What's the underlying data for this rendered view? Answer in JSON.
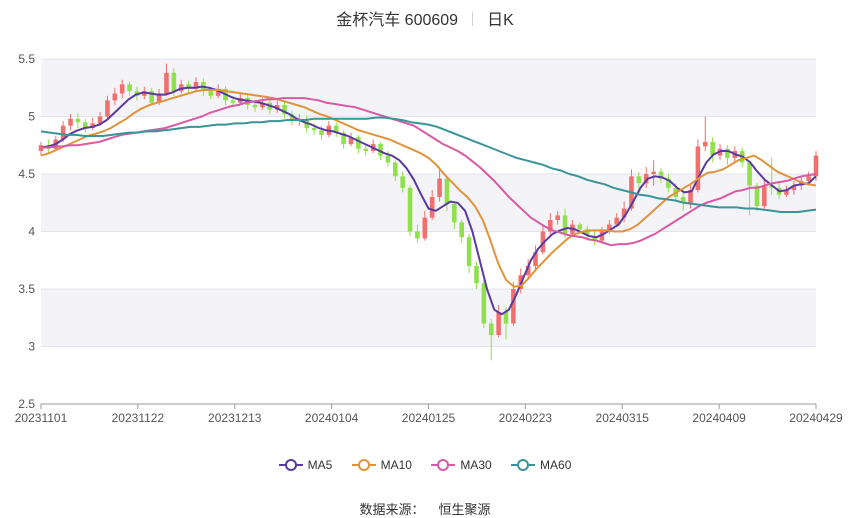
{
  "header": {
    "title": "金杯汽车 600609",
    "period": "日K"
  },
  "source": {
    "label": "数据来源：",
    "name": "恒生聚源"
  },
  "colors": {
    "up": "#f07070",
    "down": "#8fe04a",
    "MA5": "#5a3a9e",
    "MA10": "#e0943a",
    "MA30": "#d85aa4",
    "MA60": "#3a9498",
    "band": "#f3f3f8",
    "grid": "#e3e3ec"
  },
  "chart_data": {
    "type": "candlestick",
    "title": "金杯汽车 600609",
    "ylim": [
      2.5,
      5.5
    ],
    "yticks": [
      "2.5",
      "3",
      "3.5",
      "4",
      "4.5",
      "5",
      "5.5"
    ],
    "xticks": [
      "20231101",
      "20231122",
      "20231213",
      "20240104",
      "20240125",
      "20240223",
      "20240315",
      "20240409",
      "20240429"
    ],
    "grid": true,
    "legend_position": "bottom",
    "series": [
      {
        "name": "MA5",
        "values": [
          4.73,
          4.74,
          4.76,
          4.8,
          4.85,
          4.88,
          4.9,
          4.91,
          4.93,
          4.97,
          5.03,
          5.09,
          5.15,
          5.19,
          5.21,
          5.2,
          5.19,
          5.19,
          5.21,
          5.24,
          5.25,
          5.25,
          5.26,
          5.25,
          5.23,
          5.2,
          5.17,
          5.15,
          5.14,
          5.13,
          5.12,
          5.1,
          5.08,
          5.05,
          5.02,
          4.98,
          4.95,
          4.93,
          4.9,
          4.88,
          4.87,
          4.85,
          4.83,
          4.8,
          4.77,
          4.74,
          4.71,
          4.68,
          4.66,
          4.62,
          4.55,
          4.45,
          4.32,
          4.2,
          4.18,
          4.22,
          4.26,
          4.25,
          4.18,
          4.0,
          3.75,
          3.5,
          3.32,
          3.28,
          3.32,
          3.45,
          3.6,
          3.75,
          3.85,
          3.92,
          3.98,
          4.01,
          4.03,
          4.02,
          3.99,
          3.96,
          3.95,
          3.98,
          4.02,
          4.06,
          4.15,
          4.26,
          4.38,
          4.46,
          4.48,
          4.47,
          4.44,
          4.38,
          4.34,
          4.35,
          4.48,
          4.6,
          4.67,
          4.7,
          4.7,
          4.67,
          4.65,
          4.6,
          4.52,
          4.45,
          4.4,
          4.35,
          4.36,
          4.4,
          4.41,
          4.42,
          4.48
        ]
      },
      {
        "name": "MA10",
        "values": [
          4.66,
          4.68,
          4.71,
          4.74,
          4.77,
          4.8,
          4.83,
          4.85,
          4.87,
          4.9,
          4.94,
          4.98,
          5.03,
          5.07,
          5.1,
          5.12,
          5.14,
          5.16,
          5.18,
          5.2,
          5.22,
          5.23,
          5.23,
          5.23,
          5.22,
          5.21,
          5.2,
          5.19,
          5.18,
          5.17,
          5.16,
          5.14,
          5.12,
          5.1,
          5.08,
          5.05,
          5.02,
          5.0,
          4.97,
          4.94,
          4.91,
          4.88,
          4.86,
          4.84,
          4.82,
          4.8,
          4.77,
          4.74,
          4.71,
          4.68,
          4.64,
          4.58,
          4.5,
          4.43,
          4.36,
          4.3,
          4.22,
          4.1,
          3.92,
          3.72,
          3.58,
          3.52,
          3.53,
          3.6,
          3.68,
          3.75,
          3.82,
          3.88,
          3.94,
          3.98,
          4.0,
          4.01,
          4.01,
          4.01,
          4.0,
          4.0,
          4.02,
          4.06,
          4.12,
          4.18,
          4.24,
          4.3,
          4.34,
          4.38,
          4.42,
          4.47,
          4.51,
          4.52,
          4.54,
          4.58,
          4.62,
          4.64,
          4.66,
          4.62,
          4.57,
          4.52,
          4.49,
          4.46,
          4.43,
          4.41,
          4.4
        ]
      },
      {
        "name": "MA30",
        "values": [
          4.73,
          4.73,
          4.74,
          4.74,
          4.75,
          4.75,
          4.76,
          4.77,
          4.78,
          4.8,
          4.82,
          4.84,
          4.85,
          4.86,
          4.87,
          4.88,
          4.89,
          4.9,
          4.92,
          4.94,
          4.96,
          4.98,
          5.0,
          5.03,
          5.05,
          5.07,
          5.09,
          5.1,
          5.12,
          5.13,
          5.14,
          5.15,
          5.15,
          5.16,
          5.16,
          5.16,
          5.16,
          5.15,
          5.14,
          5.12,
          5.11,
          5.1,
          5.09,
          5.08,
          5.06,
          5.04,
          5.02,
          5.0,
          4.98,
          4.96,
          4.94,
          4.92,
          4.88,
          4.84,
          4.8,
          4.76,
          4.73,
          4.7,
          4.66,
          4.61,
          4.56,
          4.5,
          4.44,
          4.37,
          4.3,
          4.24,
          4.18,
          4.12,
          4.08,
          4.04,
          4.01,
          3.99,
          3.97,
          3.96,
          3.95,
          3.93,
          3.92,
          3.9,
          3.88,
          3.89,
          3.89,
          3.9,
          3.92,
          3.95,
          3.98,
          4.02,
          4.06,
          4.1,
          4.14,
          4.18,
          4.22,
          4.25,
          4.27,
          4.29,
          4.32,
          4.35,
          4.36,
          4.38,
          4.38,
          4.4,
          4.42,
          4.43,
          4.44,
          4.46,
          4.48,
          4.49,
          4.5
        ]
      },
      {
        "name": "MA60",
        "values": [
          4.87,
          4.86,
          4.85,
          4.84,
          4.84,
          4.83,
          4.83,
          4.83,
          4.84,
          4.85,
          4.86,
          4.86,
          4.87,
          4.87,
          4.88,
          4.89,
          4.9,
          4.91,
          4.91,
          4.92,
          4.93,
          4.93,
          4.94,
          4.94,
          4.95,
          4.95,
          4.96,
          4.96,
          4.97,
          4.97,
          4.97,
          4.98,
          4.98,
          4.98,
          4.98,
          4.98,
          4.98,
          4.98,
          4.99,
          4.99,
          4.98,
          4.97,
          4.95,
          4.94,
          4.93,
          4.91,
          4.88,
          4.85,
          4.82,
          4.79,
          4.76,
          4.73,
          4.7,
          4.67,
          4.64,
          4.62,
          4.6,
          4.58,
          4.55,
          4.53,
          4.5,
          4.48,
          4.45,
          4.43,
          4.41,
          4.38,
          4.36,
          4.34,
          4.32,
          4.31,
          4.29,
          4.28,
          4.27,
          4.25,
          4.24,
          4.23,
          4.22,
          4.21,
          4.21,
          4.21,
          4.2,
          4.2,
          4.19,
          4.18,
          4.17,
          4.17,
          4.17,
          4.18,
          4.19
        ]
      },
      {
        "name": "K",
        "candles": [
          [
            4.7,
            4.75,
            4.66,
            4.78
          ],
          [
            4.75,
            4.72,
            4.68,
            4.8
          ],
          [
            4.72,
            4.8,
            4.7,
            4.83
          ],
          [
            4.8,
            4.92,
            4.78,
            4.96
          ],
          [
            4.92,
            4.98,
            4.88,
            5.02
          ],
          [
            4.98,
            4.95,
            4.9,
            5.03
          ],
          [
            4.95,
            4.9,
            4.86,
            4.98
          ],
          [
            4.9,
            4.94,
            4.88,
            4.99
          ],
          [
            4.94,
            5.0,
            4.92,
            5.04
          ],
          [
            5.0,
            5.14,
            4.98,
            5.18
          ],
          [
            5.14,
            5.2,
            5.1,
            5.25
          ],
          [
            5.2,
            5.28,
            5.16,
            5.32
          ],
          [
            5.28,
            5.22,
            5.18,
            5.3
          ],
          [
            5.22,
            5.18,
            5.14,
            5.26
          ],
          [
            5.18,
            5.22,
            5.15,
            5.26
          ],
          [
            5.22,
            5.12,
            5.1,
            5.25
          ],
          [
            5.12,
            5.2,
            5.1,
            5.24
          ],
          [
            5.2,
            5.38,
            5.18,
            5.46
          ],
          [
            5.38,
            5.22,
            5.18,
            5.42
          ],
          [
            5.22,
            5.28,
            5.2,
            5.32
          ],
          [
            5.28,
            5.24,
            5.2,
            5.31
          ],
          [
            5.24,
            5.3,
            5.22,
            5.34
          ],
          [
            5.3,
            5.22,
            5.18,
            5.33
          ],
          [
            5.22,
            5.18,
            5.15,
            5.25
          ],
          [
            5.18,
            5.24,
            5.16,
            5.28
          ],
          [
            5.24,
            5.14,
            5.1,
            5.26
          ],
          [
            5.14,
            5.12,
            5.08,
            5.17
          ],
          [
            5.12,
            5.16,
            5.1,
            5.2
          ],
          [
            5.16,
            5.1,
            5.06,
            5.19
          ],
          [
            5.1,
            5.08,
            5.04,
            5.13
          ],
          [
            5.08,
            5.12,
            5.06,
            5.16
          ],
          [
            5.12,
            5.06,
            5.02,
            5.15
          ],
          [
            5.06,
            5.1,
            5.03,
            5.14
          ],
          [
            5.1,
            5.02,
            4.98,
            5.13
          ],
          [
            5.02,
            4.96,
            4.92,
            5.05
          ],
          [
            4.96,
            4.98,
            4.92,
            5.02
          ],
          [
            4.98,
            4.9,
            4.86,
            5.01
          ],
          [
            4.9,
            4.88,
            4.84,
            4.94
          ],
          [
            4.88,
            4.84,
            4.8,
            4.92
          ],
          [
            4.84,
            4.92,
            4.82,
            4.96
          ],
          [
            4.92,
            4.86,
            4.82,
            4.95
          ],
          [
            4.86,
            4.76,
            4.72,
            4.88
          ],
          [
            4.76,
            4.82,
            4.74,
            4.86
          ],
          [
            4.82,
            4.72,
            4.68,
            4.84
          ],
          [
            4.72,
            4.7,
            4.66,
            4.76
          ],
          [
            4.7,
            4.76,
            4.68,
            4.8
          ],
          [
            4.76,
            4.66,
            4.62,
            4.78
          ],
          [
            4.66,
            4.6,
            4.56,
            4.7
          ],
          [
            4.6,
            4.48,
            4.44,
            4.62
          ],
          [
            4.48,
            4.38,
            4.34,
            4.52
          ],
          [
            4.38,
            4.0,
            3.96,
            4.4
          ],
          [
            4.0,
            3.94,
            3.9,
            4.06
          ],
          [
            3.94,
            4.12,
            3.92,
            4.18
          ],
          [
            4.12,
            4.3,
            4.1,
            4.36
          ],
          [
            4.3,
            4.46,
            4.26,
            4.56
          ],
          [
            4.46,
            4.24,
            4.18,
            4.48
          ],
          [
            4.24,
            4.08,
            4.02,
            4.26
          ],
          [
            4.08,
            3.95,
            3.9,
            4.1
          ],
          [
            3.95,
            3.7,
            3.64,
            3.98
          ],
          [
            3.7,
            3.55,
            3.5,
            3.74
          ],
          [
            3.55,
            3.2,
            3.16,
            3.58
          ],
          [
            3.2,
            3.1,
            2.88,
            3.24
          ],
          [
            3.1,
            3.3,
            3.08,
            3.36
          ],
          [
            3.3,
            3.2,
            3.06,
            3.34
          ],
          [
            3.2,
            3.5,
            3.18,
            3.56
          ],
          [
            3.5,
            3.62,
            3.46,
            3.68
          ],
          [
            3.62,
            3.7,
            3.58,
            3.76
          ],
          [
            3.7,
            3.82,
            3.66,
            3.88
          ],
          [
            3.82,
            4.0,
            3.8,
            4.06
          ],
          [
            4.0,
            4.1,
            3.96,
            4.16
          ],
          [
            4.1,
            4.14,
            4.06,
            4.18
          ],
          [
            4.14,
            3.98,
            3.94,
            4.2
          ],
          [
            3.98,
            4.06,
            3.96,
            4.1
          ],
          [
            4.06,
            4.02,
            3.98,
            4.08
          ],
          [
            4.02,
            3.96,
            3.92,
            4.05
          ],
          [
            3.96,
            3.92,
            3.88,
            4.0
          ],
          [
            3.92,
            4.0,
            3.9,
            4.04
          ],
          [
            4.0,
            4.06,
            3.98,
            4.1
          ],
          [
            4.06,
            4.12,
            4.04,
            4.16
          ],
          [
            4.12,
            4.2,
            4.08,
            4.26
          ],
          [
            4.2,
            4.48,
            4.18,
            4.54
          ],
          [
            4.48,
            4.42,
            4.36,
            4.52
          ],
          [
            4.42,
            4.5,
            4.38,
            4.56
          ],
          [
            4.5,
            4.52,
            4.4,
            4.62
          ],
          [
            4.52,
            4.46,
            4.42,
            4.55
          ],
          [
            4.46,
            4.38,
            4.34,
            4.5
          ],
          [
            4.38,
            4.3,
            4.26,
            4.42
          ],
          [
            4.3,
            4.25,
            4.18,
            4.34
          ],
          [
            4.25,
            4.36,
            4.2,
            4.4
          ],
          [
            4.36,
            4.74,
            4.34,
            4.8
          ],
          [
            4.74,
            4.78,
            4.7,
            5.0
          ],
          [
            4.78,
            4.66,
            4.6,
            4.82
          ],
          [
            4.66,
            4.72,
            4.62,
            4.76
          ],
          [
            4.72,
            4.64,
            4.58,
            4.75
          ],
          [
            4.64,
            4.7,
            4.6,
            4.74
          ],
          [
            4.7,
            4.6,
            4.56,
            4.73
          ],
          [
            4.6,
            4.4,
            4.14,
            4.62
          ],
          [
            4.4,
            4.22,
            4.18,
            4.42
          ],
          [
            4.22,
            4.4,
            4.2,
            4.45
          ],
          [
            4.4,
            4.38,
            4.32,
            4.64
          ],
          [
            4.38,
            4.32,
            4.28,
            4.42
          ],
          [
            4.32,
            4.36,
            4.3,
            4.4
          ],
          [
            4.36,
            4.4,
            4.32,
            4.44
          ],
          [
            4.4,
            4.44,
            4.36,
            4.48
          ],
          [
            4.44,
            4.48,
            4.4,
            4.52
          ],
          [
            4.48,
            4.66,
            4.44,
            4.7
          ]
        ]
      }
    ]
  }
}
